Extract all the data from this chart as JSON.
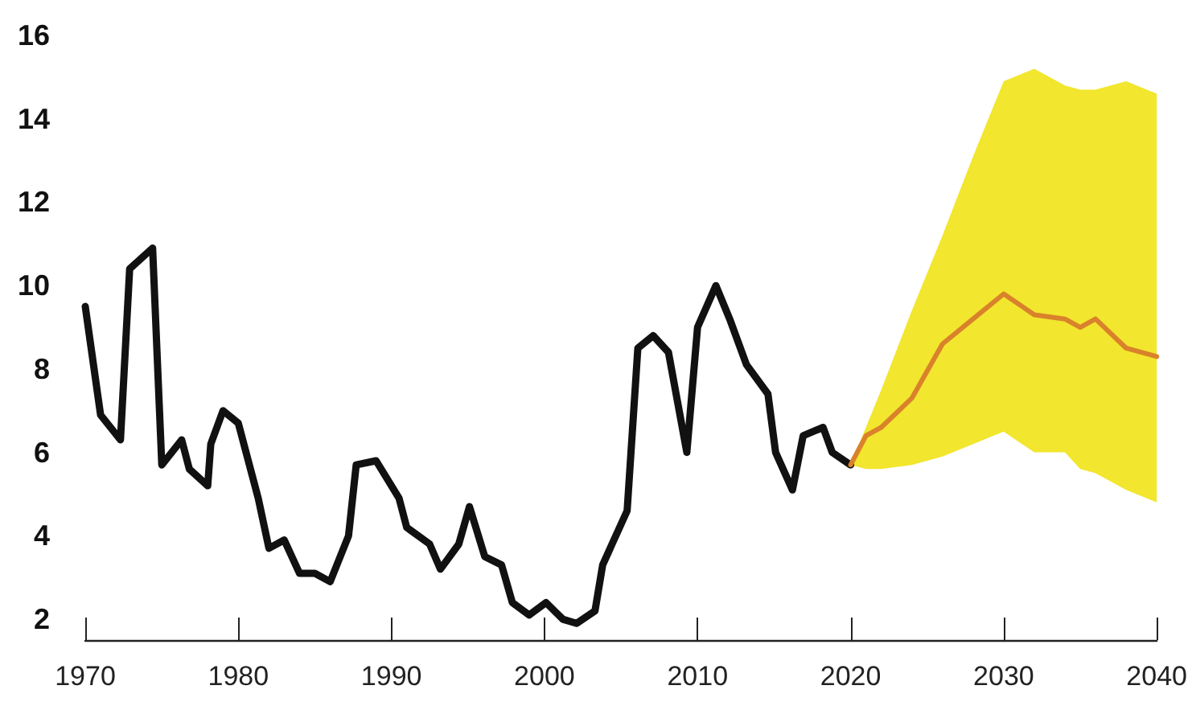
{
  "chart_data": {
    "type": "line",
    "xlim": [
      1970,
      2040
    ],
    "xticks": [
      1970,
      1980,
      1990,
      2000,
      2010,
      2020,
      2030,
      2040
    ],
    "ylim": [
      1.5,
      16
    ],
    "yticks": [
      2,
      4,
      6,
      8,
      10,
      12,
      14,
      16
    ],
    "grid": false,
    "marker": "none",
    "line_style": "solid",
    "series": [
      {
        "color": "#111111",
        "x": [
          1970,
          1971,
          1972.3,
          1972.9,
          1974.4,
          1975,
          1976.3,
          1976.8,
          1978,
          1978.2,
          1979,
          1980,
          1981.3,
          1982,
          1983,
          1984,
          1985,
          1986,
          1987.2,
          1987.7,
          1989,
          1990.5,
          1991,
          1992.5,
          1993.2,
          1994.4,
          1995.1,
          1996.1,
          1997.2,
          1997.9,
          1999,
          2000.1,
          2001.2,
          2002.1,
          2003.3,
          2003.8,
          2005.4,
          2006.1,
          2007.1,
          2008.1,
          2009.3,
          2010,
          2011.2,
          2012.1,
          2013.2,
          2014.6,
          2015.1,
          2016.2,
          2016.9,
          2018.2,
          2018.8,
          2020
        ],
        "values": [
          9.5,
          6.9,
          6.3,
          10.4,
          10.9,
          5.7,
          6.3,
          5.6,
          5.2,
          6.2,
          7.0,
          6.7,
          4.9,
          3.7,
          3.9,
          3.1,
          3.1,
          2.9,
          4.0,
          5.7,
          5.8,
          4.9,
          4.2,
          3.8,
          3.2,
          3.8,
          4.7,
          3.5,
          3.3,
          2.4,
          2.1,
          2.4,
          2.0,
          1.9,
          2.2,
          3.3,
          4.6,
          8.5,
          8.8,
          8.4,
          6.0,
          9.0,
          10.0,
          9.2,
          8.1,
          7.4,
          6.0,
          5.1,
          6.4,
          6.6,
          6.0,
          5.7
        ]
      },
      {
        "color": "#d9822b",
        "x": [
          2020,
          2021,
          2022,
          2024,
          2026,
          2028,
          2030,
          2032,
          2034,
          2035,
          2036,
          2038,
          2040
        ],
        "values": [
          5.7,
          6.4,
          6.6,
          7.3,
          8.6,
          9.2,
          9.8,
          9.3,
          9.2,
          9.0,
          9.2,
          8.5,
          8.3
        ],
        "lower": [
          5.7,
          5.6,
          5.6,
          5.7,
          5.9,
          6.2,
          6.5,
          6.0,
          6.0,
          5.6,
          5.5,
          5.1,
          4.8
        ],
        "upper": [
          5.7,
          6.6,
          7.5,
          9.4,
          11.2,
          13.1,
          14.9,
          15.2,
          14.8,
          14.7,
          14.7,
          14.9,
          14.6
        ]
      }
    ]
  }
}
